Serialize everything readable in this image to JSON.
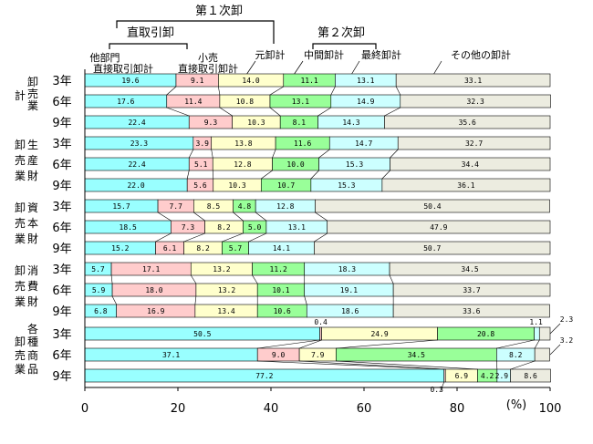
{
  "chart_data": {
    "type": "bar",
    "stacked": "100%",
    "orientation": "horizontal",
    "unit": "(%)",
    "xlim": [
      0,
      100
    ],
    "xticks": [
      0,
      20,
      40,
      60,
      80,
      100
    ],
    "grid": false,
    "header": {
      "tier1": "第１次卸",
      "tier1_sub": "直取引卸",
      "tier2": "第２次卸",
      "series_labels": [
        "他部門\n直接取引卸計",
        "小売\n直接取引卸計",
        "元卸計",
        "中間卸計",
        "最終卸計",
        "その他の卸計"
      ]
    },
    "series": [
      {
        "name": "他部門直接取引卸計",
        "color": "#99ffff"
      },
      {
        "name": "小売直接取引卸計",
        "color": "#ffcccc"
      },
      {
        "name": "元卸計",
        "color": "#ffffcc"
      },
      {
        "name": "中間卸計",
        "color": "#99ff99"
      },
      {
        "name": "最終卸計",
        "color": "#ccffff"
      },
      {
        "name": "その他の卸計",
        "color": "#ecece0"
      }
    ],
    "groups": [
      {
        "label": "卸売業計",
        "rows": [
          {
            "year": "3年",
            "values": [
              19.6,
              9.1,
              14.0,
              11.1,
              13.1,
              33.1
            ]
          },
          {
            "year": "6年",
            "values": [
              17.6,
              11.4,
              10.8,
              13.1,
              14.9,
              32.3
            ]
          },
          {
            "year": "9年",
            "values": [
              22.4,
              9.3,
              10.3,
              8.1,
              14.3,
              35.6
            ]
          }
        ]
      },
      {
        "label": "生産財卸売業",
        "rows": [
          {
            "year": "3年",
            "values": [
              23.3,
              3.9,
              13.8,
              11.6,
              14.7,
              32.7
            ]
          },
          {
            "year": "6年",
            "values": [
              22.4,
              5.1,
              12.8,
              10.0,
              15.3,
              34.4
            ]
          },
          {
            "year": "9年",
            "values": [
              22.0,
              5.6,
              10.3,
              10.7,
              15.3,
              36.1
            ]
          }
        ]
      },
      {
        "label": "資本財卸売業",
        "rows": [
          {
            "year": "3年",
            "values": [
              15.7,
              7.7,
              8.5,
              4.8,
              12.8,
              50.4
            ]
          },
          {
            "year": "6年",
            "values": [
              18.5,
              7.3,
              8.2,
              5.0,
              13.1,
              47.9
            ]
          },
          {
            "year": "9年",
            "values": [
              15.2,
              6.1,
              8.2,
              5.7,
              14.1,
              50.7
            ]
          }
        ]
      },
      {
        "label": "消費財卸売業",
        "rows": [
          {
            "year": "3年",
            "values": [
              5.7,
              17.1,
              13.2,
              11.2,
              18.3,
              34.5
            ]
          },
          {
            "year": "6年",
            "values": [
              5.9,
              18.0,
              13.2,
              10.1,
              19.1,
              33.7
            ]
          },
          {
            "year": "9年",
            "values": [
              6.8,
              16.9,
              13.4,
              10.6,
              18.6,
              33.6
            ]
          }
        ]
      },
      {
        "label": "各種商品卸売業",
        "rows": [
          {
            "year": "3年",
            "values": [
              50.5,
              0.4,
              24.9,
              20.8,
              1.1,
              2.3
            ]
          },
          {
            "year": "6年",
            "values": [
              37.1,
              9.0,
              7.9,
              34.5,
              8.2,
              3.2
            ]
          },
          {
            "year": "9年",
            "values": [
              77.2,
              0.3,
              6.9,
              4.2,
              2.9,
              8.6
            ]
          }
        ]
      }
    ]
  }
}
